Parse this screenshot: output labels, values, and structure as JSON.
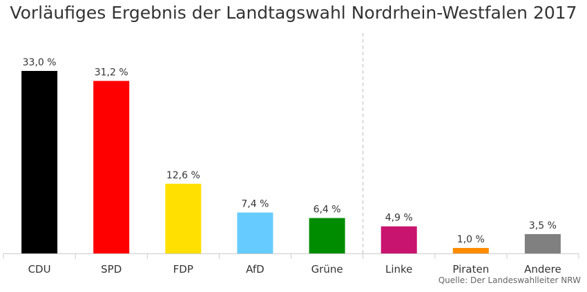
{
  "chart_data": {
    "type": "bar",
    "title": "Vorläufiges Ergebnis der Landtagswahl Nordrhein-Westfalen 2017",
    "categories": [
      "CDU",
      "SPD",
      "FDP",
      "AfD",
      "Grüne",
      "Linke",
      "Piraten",
      "Andere"
    ],
    "values": [
      33.0,
      31.2,
      12.6,
      7.4,
      6.4,
      4.9,
      1.0,
      3.5
    ],
    "data_labels": [
      "33,0 %",
      "31,2 %",
      "12,6 %",
      "7,4 %",
      "6,4 %",
      "4,9 %",
      "1,0 %",
      "3,5 %"
    ],
    "colors": [
      "#000000",
      "#ff0000",
      "#ffe000",
      "#66ccff",
      "#008c00",
      "#c8146e",
      "#ff8c00",
      "#808080"
    ],
    "xlabel": "",
    "ylabel": "",
    "ylim": [
      0,
      33.0
    ],
    "grid": false,
    "separator_after_category": "Grüne",
    "source": "Quelle: Der Landeswahlleiter NRW"
  }
}
